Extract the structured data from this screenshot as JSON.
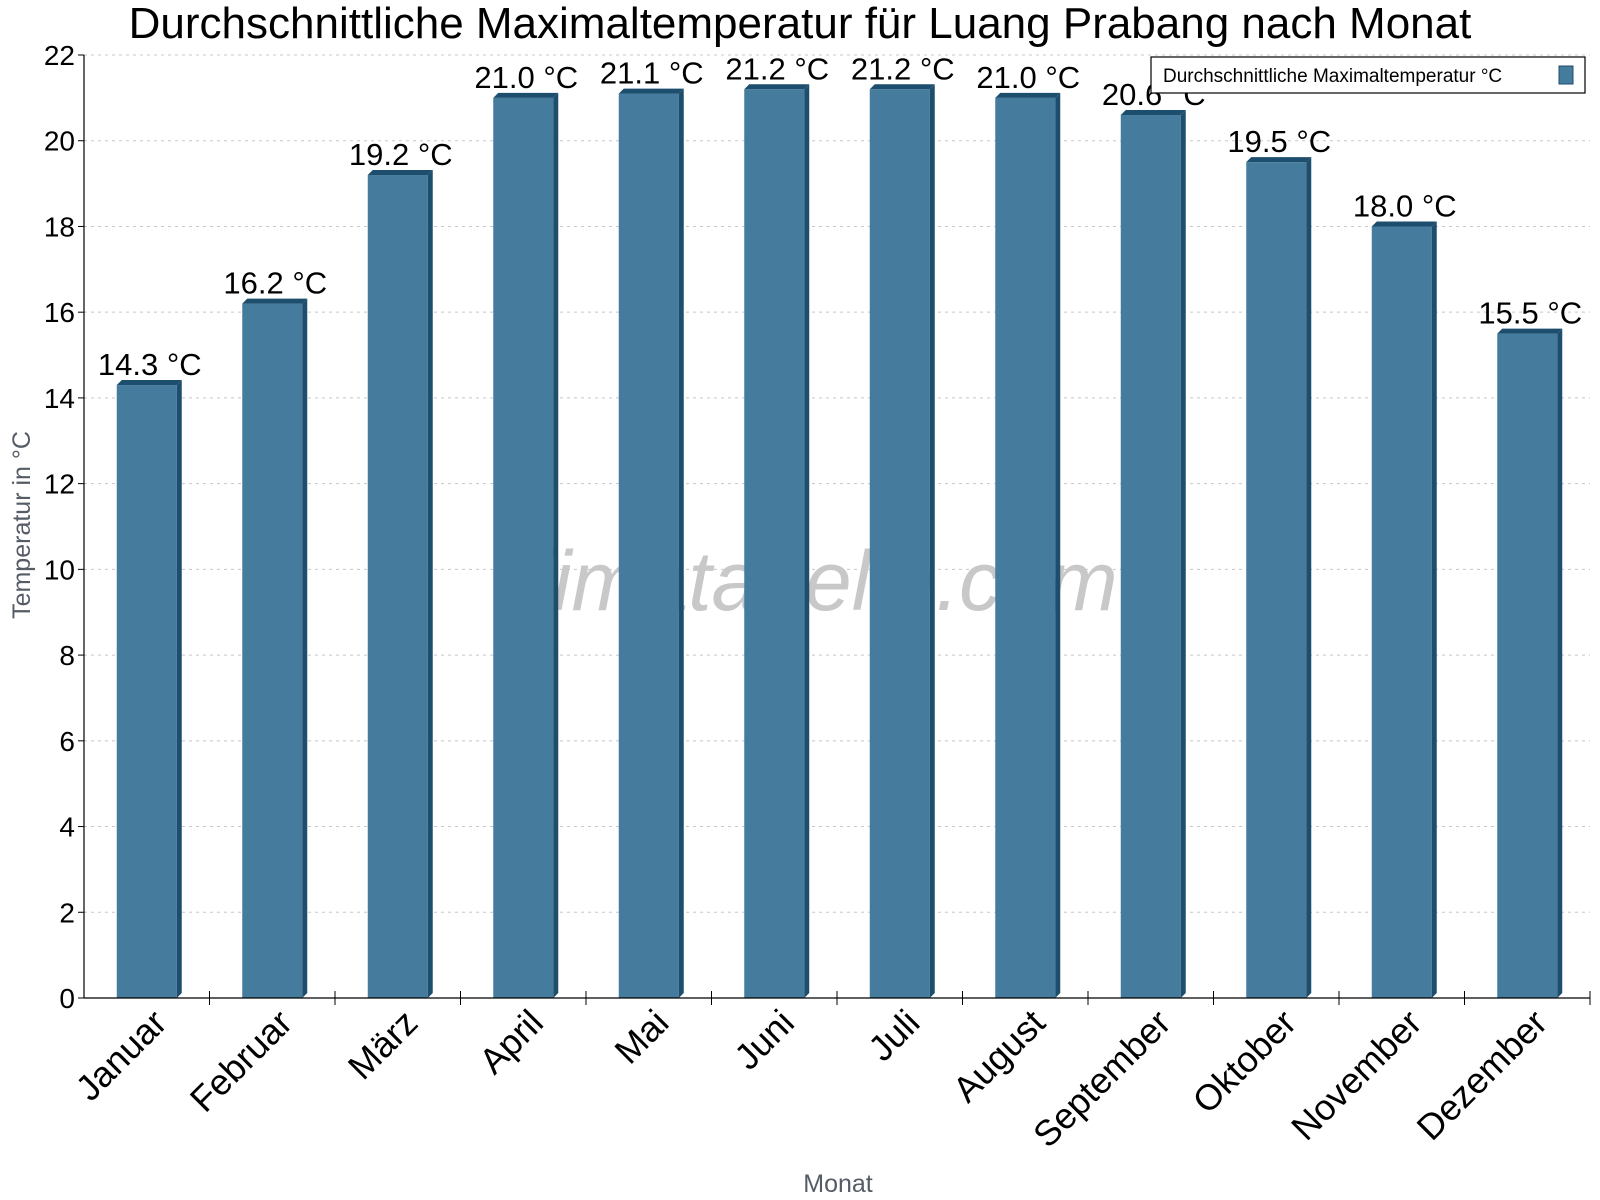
{
  "chart_data": {
    "type": "bar",
    "title": "Durchschnittliche Maximaltemperatur für Luang Prabang nach Monat",
    "xlabel": "Monat",
    "ylabel": "Temperatur in °C",
    "categories": [
      "Januar",
      "Februar",
      "März",
      "April",
      "Mai",
      "Juni",
      "Juli",
      "August",
      "September",
      "Oktober",
      "November",
      "Dezember"
    ],
    "series": [
      {
        "name": "Durchschnittliche Maximaltemperatur °C",
        "values": [
          14.3,
          16.2,
          19.2,
          21.0,
          21.1,
          21.2,
          21.2,
          21.0,
          20.6,
          19.5,
          18.0,
          15.5
        ],
        "labels": [
          "14.3 °C",
          "16.2 °C",
          "19.2 °C",
          "21.0 °C",
          "21.1 °C",
          "21.2 °C",
          "21.2 °C",
          "21.0 °C",
          "20.6 °C",
          "19.5 °C",
          "18.0 °C",
          "15.5 °C"
        ]
      }
    ],
    "ylim": [
      0,
      22
    ],
    "yticks": [
      "0",
      "2",
      "4",
      "6",
      "8",
      "10",
      "12",
      "14",
      "16",
      "18",
      "20",
      "22"
    ],
    "grid": true,
    "legend_position": "top-right",
    "bar_color": "#457b9d",
    "bar_side_color": "#1d4e6e",
    "watermark": "klimatabelle.com"
  }
}
